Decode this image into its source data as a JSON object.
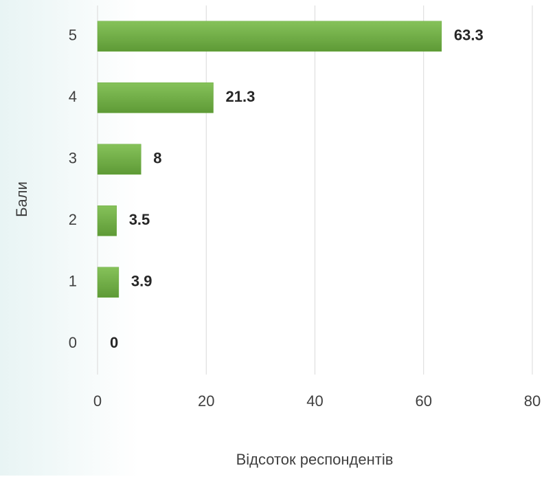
{
  "chart_data": {
    "type": "bar",
    "orientation": "horizontal",
    "categories": [
      "5",
      "4",
      "3",
      "2",
      "1",
      "0"
    ],
    "values": [
      63.3,
      21.3,
      8,
      3.5,
      3.9,
      0
    ],
    "color": "#6aaa3e",
    "xlim": [
      0,
      80
    ],
    "xticks": [
      0,
      20,
      40,
      60,
      80
    ],
    "grid": true,
    "xlabel": "Відсоток респондентів",
    "ylabel": "Бали"
  }
}
